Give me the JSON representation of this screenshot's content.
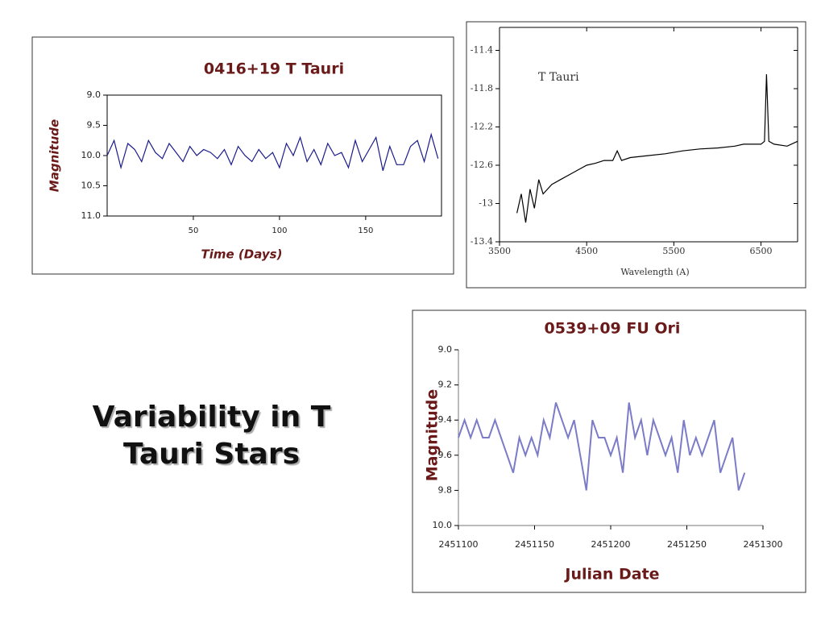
{
  "slide_title": "Variability in T Tauri Stars",
  "chart_data": [
    {
      "type": "line",
      "title": "0416+19 T Tauri",
      "x_label": "Time (Days)",
      "y_label": "Magnitude",
      "x": [
        0,
        4,
        8,
        12,
        16,
        20,
        24,
        28,
        32,
        36,
        40,
        44,
        48,
        52,
        56,
        60,
        64,
        68,
        72,
        76,
        80,
        84,
        88,
        92,
        96,
        100,
        104,
        108,
        112,
        116,
        120,
        124,
        128,
        132,
        136,
        140,
        144,
        148,
        152,
        156,
        160,
        164,
        168,
        172,
        176,
        180,
        184,
        188,
        192
      ],
      "series": [
        {
          "name": "0416+19 T Tauri",
          "color": "#1a1a8c",
          "values": [
            10.0,
            9.75,
            10.2,
            9.8,
            9.9,
            10.1,
            9.75,
            9.95,
            10.05,
            9.8,
            9.95,
            10.1,
            9.85,
            10.0,
            9.9,
            9.95,
            10.05,
            9.9,
            10.15,
            9.85,
            10.0,
            10.1,
            9.9,
            10.05,
            9.95,
            10.2,
            9.8,
            10.0,
            9.7,
            10.1,
            9.9,
            10.15,
            9.8,
            10.0,
            9.95,
            10.2,
            9.75,
            10.1,
            9.9,
            9.7,
            10.25,
            9.85,
            10.15,
            10.15,
            9.85,
            9.75,
            10.1,
            9.65,
            10.05
          ]
        }
      ],
      "xlim": [
        0,
        194
      ],
      "xticks": [
        50,
        100,
        150
      ],
      "ylim": [
        9.0,
        11.0
      ],
      "y_inverted": true,
      "yticks": [
        {
          "value": 9.0,
          "label": "9.0"
        },
        9.5,
        {
          "value": 10.0,
          "label": "10.0"
        },
        10.5,
        {
          "value": 11.0,
          "label": "11.0"
        }
      ]
    },
    {
      "type": "line",
      "annotation": "T Tauri",
      "x_label": "Wavelength (A)",
      "x": [
        3700,
        3750,
        3800,
        3850,
        3900,
        3950,
        4000,
        4100,
        4200,
        4300,
        4400,
        4500,
        4600,
        4700,
        4800,
        4850,
        4900,
        5000,
        5200,
        5400,
        5600,
        5800,
        6000,
        6200,
        6300,
        6400,
        6500,
        6540,
        6563,
        6590,
        6650,
        6800,
        6920
      ],
      "series": [
        {
          "name": "T Tauri",
          "color": "#000000",
          "values": [
            -13.1,
            -12.9,
            -13.2,
            -12.85,
            -13.05,
            -12.75,
            -12.9,
            -12.8,
            -12.75,
            -12.7,
            -12.65,
            -12.6,
            -12.58,
            -12.55,
            -12.55,
            -12.45,
            -12.55,
            -12.52,
            -12.5,
            -12.48,
            -12.45,
            -12.43,
            -12.42,
            -12.4,
            -12.38,
            -12.38,
            -12.38,
            -12.35,
            -11.65,
            -12.35,
            -12.38,
            -12.4,
            -12.35
          ]
        }
      ],
      "xlim": [
        3500,
        6920
      ],
      "xticks": [
        3500,
        4500,
        5500,
        6500
      ],
      "ylim": [
        -13.4,
        -11.16
      ],
      "yticks": [
        -11.4,
        -11.8,
        -12.2,
        -12.6,
        -13.0,
        -13.4
      ]
    },
    {
      "type": "line",
      "title": "0539+09 FU Ori",
      "x_label": "Julian Date",
      "y_label": "Magnitude",
      "x": [
        2451100,
        2451104,
        2451108,
        2451112,
        2451116,
        2451120,
        2451124,
        2451128,
        2451132,
        2451136,
        2451140,
        2451144,
        2451148,
        2451152,
        2451156,
        2451160,
        2451164,
        2451168,
        2451172,
        2451176,
        2451180,
        2451184,
        2451188,
        2451192,
        2451196,
        2451200,
        2451204,
        2451208,
        2451212,
        2451216,
        2451220,
        2451224,
        2451228,
        2451232,
        2451236,
        2451240,
        2451244,
        2451248,
        2451252,
        2451256,
        2451260,
        2451264,
        2451268,
        2451272,
        2451276,
        2451280,
        2451284,
        2451288
      ],
      "series": [
        {
          "name": "0539+09 FU Ori",
          "color": "#7b7bc8",
          "values": [
            9.5,
            9.4,
            9.5,
            9.4,
            9.5,
            9.5,
            9.4,
            9.5,
            9.6,
            9.7,
            9.5,
            9.6,
            9.5,
            9.6,
            9.4,
            9.5,
            9.3,
            9.4,
            9.5,
            9.4,
            9.6,
            9.8,
            9.4,
            9.5,
            9.5,
            9.6,
            9.5,
            9.7,
            9.3,
            9.5,
            9.4,
            9.6,
            9.4,
            9.5,
            9.6,
            9.5,
            9.7,
            9.4,
            9.6,
            9.5,
            9.6,
            9.5,
            9.4,
            9.7,
            9.6,
            9.5,
            9.8,
            9.7
          ]
        }
      ],
      "xlim": [
        2451100,
        2451300
      ],
      "xticks": [
        2451100,
        2451150,
        2451200,
        2451250,
        2451300
      ],
      "ylim": [
        9.0,
        10.0
      ],
      "y_inverted": true,
      "yticks": [
        {
          "value": 9.0,
          "label": "9.0"
        },
        9.2,
        9.4,
        9.6,
        9.8,
        {
          "value": 10.0,
          "label": "10.0"
        }
      ]
    }
  ]
}
